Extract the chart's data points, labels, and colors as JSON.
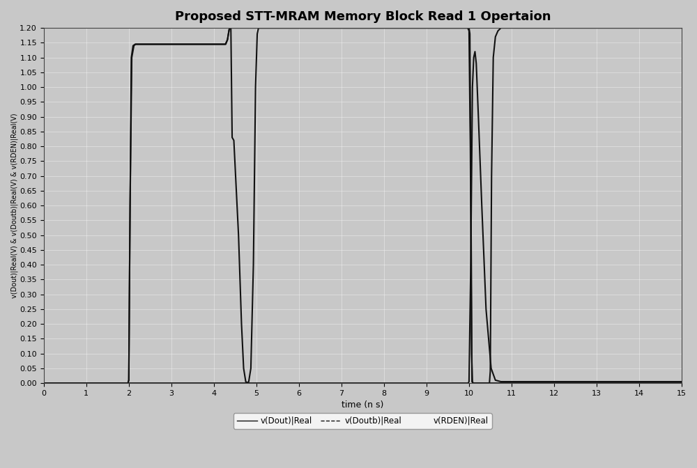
{
  "title": "Proposed STT-MRAM Memory Block Read 1 Opertaion",
  "xlabel": "time (n s)",
  "ylabel": "v(Dout)|Real(V) & v(Doutb)|Real(V) & v(RDEN)|Real(V)",
  "xlim": [
    0,
    15
  ],
  "ylim": [
    0.0,
    1.2
  ],
  "yticks": [
    0.0,
    0.05,
    0.1,
    0.15,
    0.2,
    0.25,
    0.3,
    0.35,
    0.4,
    0.45,
    0.5,
    0.55,
    0.6,
    0.65,
    0.7,
    0.75,
    0.8,
    0.85,
    0.9,
    0.95,
    1.0,
    1.05,
    1.1,
    1.15,
    1.2
  ],
  "xticks": [
    0,
    1,
    2,
    3,
    4,
    5,
    6,
    7,
    8,
    9,
    10,
    11,
    12,
    13,
    14,
    15
  ],
  "bg_color": "#c8c8c8",
  "fig_color": "#c8c8c8",
  "line_color": "#111111",
  "legend_labels": [
    "v(Dout)|Real",
    "v(Doutb)|Real",
    "v(RDEN)|Real"
  ],
  "title_fontsize": 13,
  "label_fontsize": 9,
  "tick_fontsize": 8,
  "rden": [
    [
      0.0,
      0.0
    ],
    [
      1.98,
      0.0
    ],
    [
      2.0,
      0.01
    ],
    [
      2.03,
      0.6
    ],
    [
      2.06,
      1.1
    ],
    [
      2.1,
      1.14
    ],
    [
      2.15,
      1.145
    ],
    [
      4.28,
      1.145
    ],
    [
      4.32,
      1.16
    ],
    [
      4.36,
      1.195
    ],
    [
      4.39,
      1.2
    ],
    [
      4.41,
      1.2
    ],
    [
      10.0,
      1.2
    ],
    [
      10.02,
      1.18
    ],
    [
      10.05,
      0.5
    ],
    [
      10.07,
      0.005
    ],
    [
      10.09,
      0.0
    ],
    [
      10.48,
      0.0
    ],
    [
      10.5,
      0.04
    ],
    [
      10.53,
      0.7
    ],
    [
      10.57,
      1.1
    ],
    [
      10.62,
      1.17
    ],
    [
      10.68,
      1.19
    ],
    [
      10.75,
      1.2
    ],
    [
      15.0,
      1.2
    ]
  ],
  "doutb": [
    [
      0.0,
      0.0
    ],
    [
      1.98,
      0.0
    ],
    [
      2.0,
      0.01
    ],
    [
      2.03,
      0.6
    ],
    [
      2.07,
      1.1
    ],
    [
      2.12,
      1.14
    ],
    [
      2.16,
      1.145
    ],
    [
      4.27,
      1.145
    ],
    [
      4.32,
      1.16
    ],
    [
      4.36,
      1.195
    ],
    [
      4.4,
      1.2
    ],
    [
      4.43,
      0.83
    ],
    [
      4.47,
      0.82
    ],
    [
      4.58,
      0.5
    ],
    [
      4.65,
      0.2
    ],
    [
      4.7,
      0.05
    ],
    [
      4.75,
      0.005
    ],
    [
      4.8,
      0.0
    ],
    [
      9.98,
      0.0
    ],
    [
      10.0,
      0.005
    ],
    [
      10.04,
      0.4
    ],
    [
      10.08,
      1.0
    ],
    [
      10.11,
      1.1
    ],
    [
      10.14,
      1.12
    ],
    [
      10.17,
      1.08
    ],
    [
      10.22,
      0.9
    ],
    [
      10.3,
      0.6
    ],
    [
      10.4,
      0.25
    ],
    [
      10.52,
      0.05
    ],
    [
      10.62,
      0.01
    ],
    [
      10.75,
      0.005
    ],
    [
      15.0,
      0.005
    ]
  ],
  "dout": [
    [
      0.0,
      0.0
    ],
    [
      4.78,
      0.0
    ],
    [
      4.82,
      0.005
    ],
    [
      4.87,
      0.05
    ],
    [
      4.93,
      0.4
    ],
    [
      4.98,
      1.0
    ],
    [
      5.02,
      1.18
    ],
    [
      5.05,
      1.2
    ],
    [
      9.97,
      1.2
    ],
    [
      10.0,
      1.19
    ],
    [
      10.03,
      0.8
    ],
    [
      10.06,
      0.1
    ],
    [
      10.08,
      0.005
    ],
    [
      10.1,
      0.0
    ],
    [
      15.0,
      0.0
    ]
  ]
}
